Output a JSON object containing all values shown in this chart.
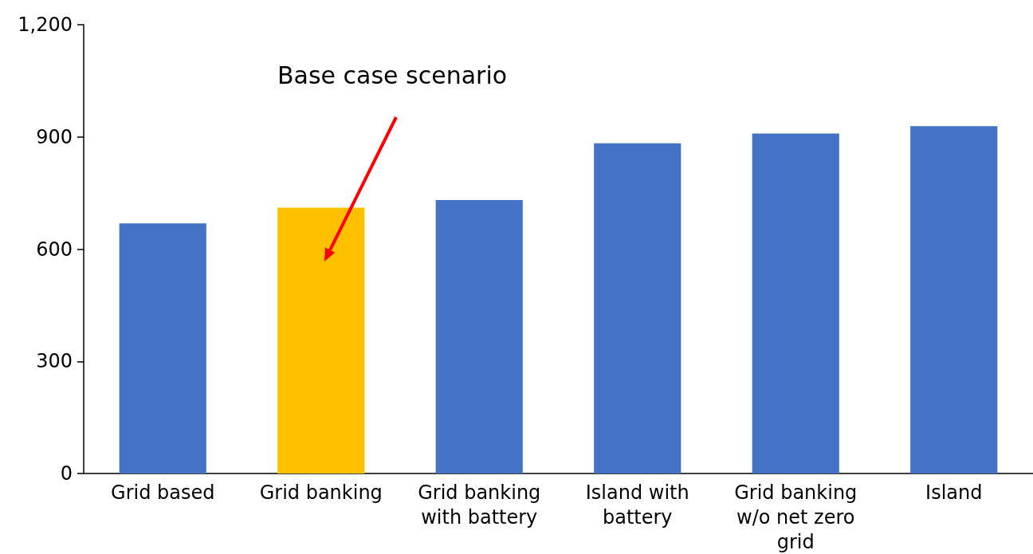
{
  "chart_data": {
    "type": "bar",
    "categories": [
      "Grid based",
      "Grid banking",
      "Grid banking\nwith battery",
      "Island with\nbattery",
      "Grid banking\nw/o net zero\ngrid",
      "Island"
    ],
    "values": [
      669,
      711,
      731,
      883,
      909,
      929
    ],
    "colors": [
      "#4472c4",
      "#ffc000",
      "#4472c4",
      "#4472c4",
      "#4472c4",
      "#4472c4"
    ],
    "ylim": [
      0,
      1200
    ],
    "yticks": [
      0,
      300,
      600,
      900,
      {
        "value": 1200,
        "label": "1,200"
      }
    ],
    "grid": false,
    "annotations": [
      "Base case scenario"
    ]
  }
}
